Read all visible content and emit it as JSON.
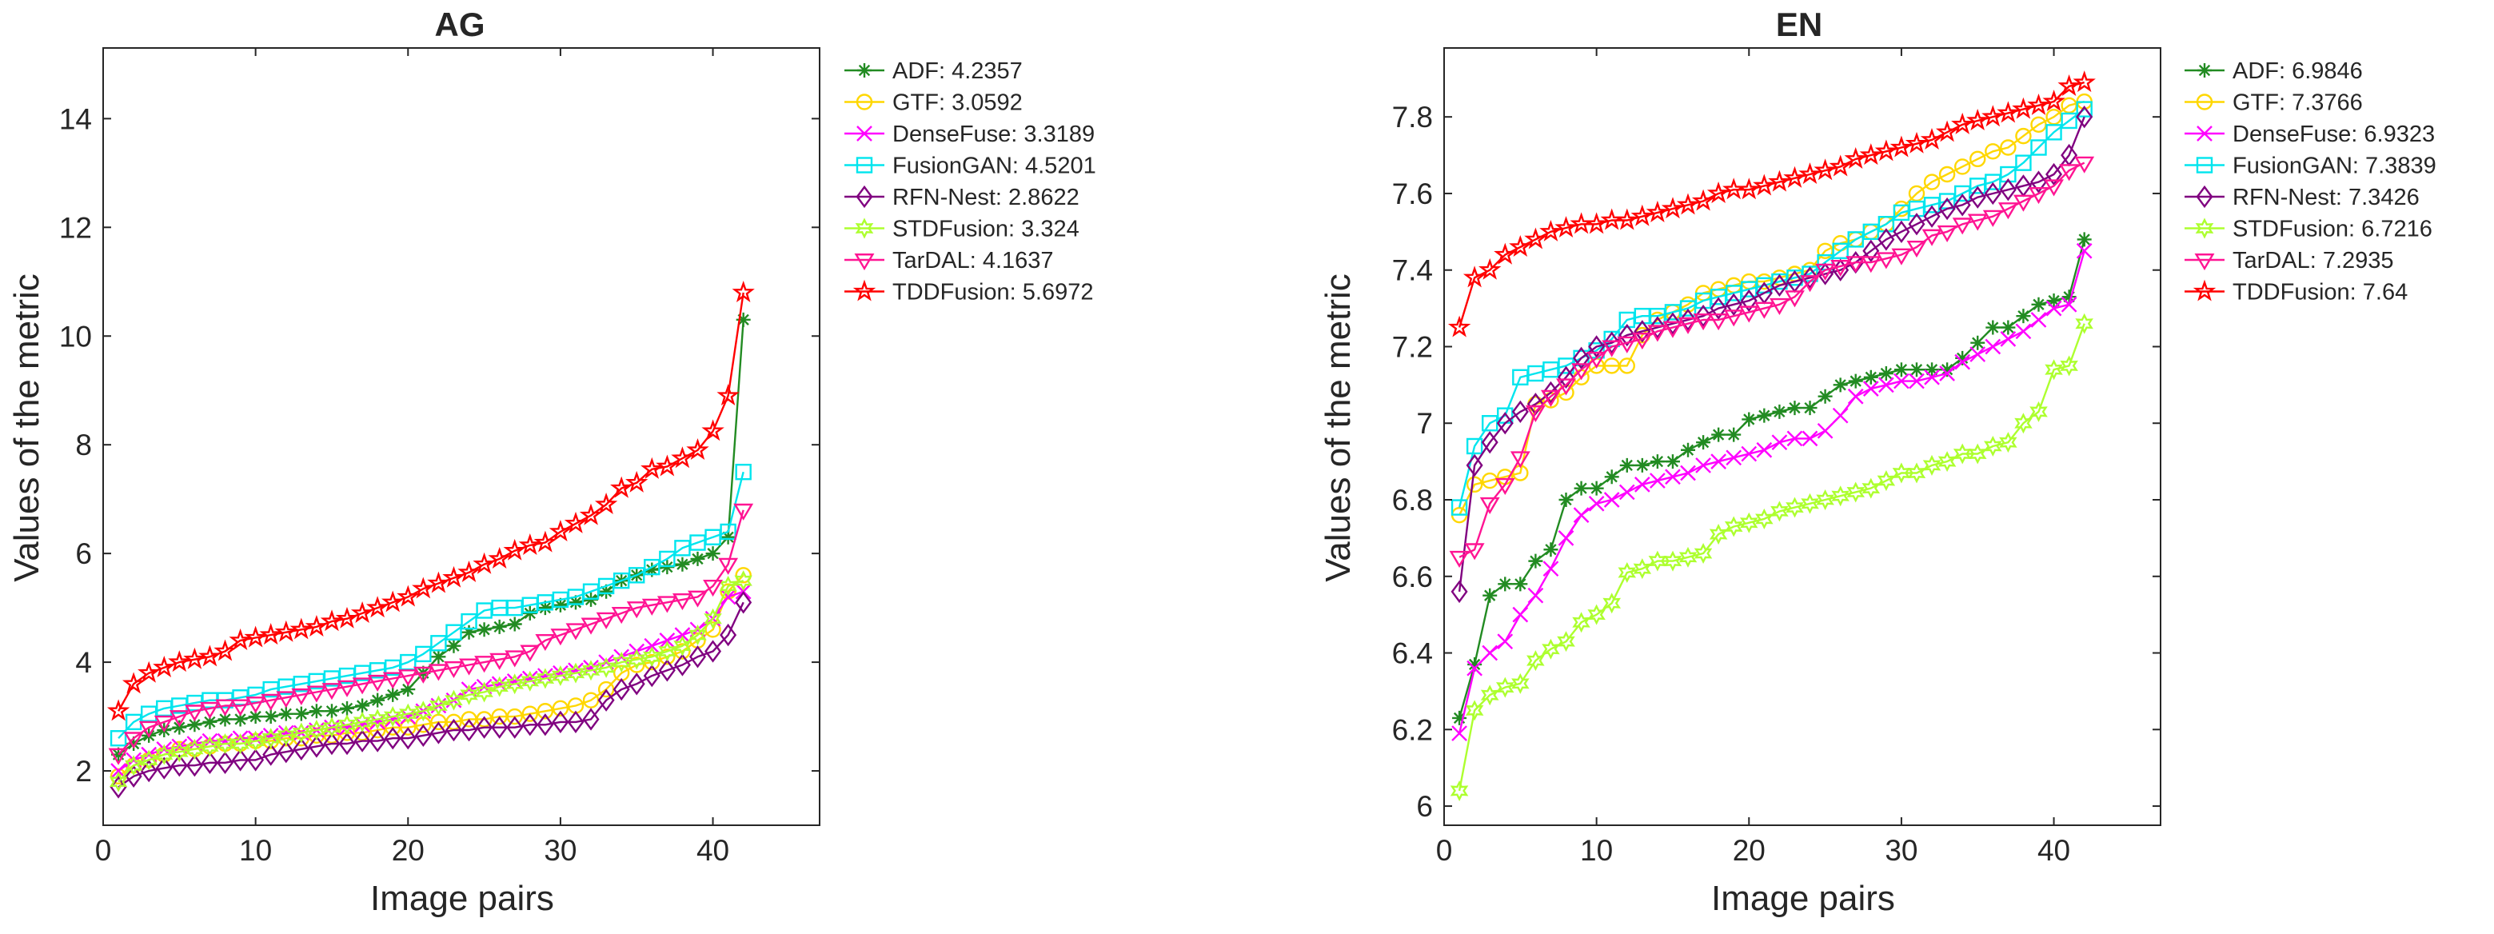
{
  "chart_data": [
    {
      "type": "line",
      "title": "AG",
      "xlabel": "Image pairs",
      "ylabel": "Values of the metric",
      "xlim": [
        0,
        47
      ],
      "ylim": [
        1,
        15.3
      ],
      "xticks": [
        0,
        10,
        20,
        30,
        40
      ],
      "yticks": [
        2,
        4,
        6,
        8,
        10,
        12,
        14
      ],
      "legend_position": "outside-right",
      "legend": [
        "ADF: 4.2357",
        "GTF: 3.0592",
        "DenseFuse: 3.3189",
        "FusionGAN: 4.5201",
        "RFN-Nest: 2.8622",
        "STDFusion: 3.324",
        "TarDAL: 4.1637",
        "TDDFusion: 5.6972"
      ],
      "x": [
        1,
        2,
        3,
        4,
        5,
        6,
        7,
        8,
        9,
        10,
        11,
        12,
        13,
        14,
        15,
        16,
        17,
        18,
        19,
        20,
        21,
        22,
        23,
        24,
        25,
        26,
        27,
        28,
        29,
        30,
        31,
        32,
        33,
        34,
        35,
        36,
        37,
        38,
        39,
        40,
        41,
        42
      ],
      "series": [
        {
          "name": "ADF",
          "color": "#228B22",
          "marker": "asterisk",
          "values": [
            2.3,
            2.5,
            2.65,
            2.75,
            2.8,
            2.85,
            2.9,
            2.95,
            2.95,
            3.0,
            3.0,
            3.05,
            3.05,
            3.1,
            3.1,
            3.15,
            3.2,
            3.3,
            3.4,
            3.5,
            3.8,
            4.1,
            4.3,
            4.55,
            4.6,
            4.65,
            4.7,
            4.9,
            5.0,
            5.05,
            5.1,
            5.15,
            5.3,
            5.5,
            5.6,
            5.7,
            5.75,
            5.8,
            5.9,
            6.0,
            6.3,
            10.3
          ]
        },
        {
          "name": "GTF",
          "color": "#FFD700",
          "marker": "circle",
          "values": [
            1.9,
            2.1,
            2.2,
            2.3,
            2.4,
            2.4,
            2.45,
            2.5,
            2.5,
            2.55,
            2.55,
            2.6,
            2.6,
            2.65,
            2.65,
            2.7,
            2.7,
            2.75,
            2.8,
            2.8,
            2.85,
            2.9,
            2.9,
            2.95,
            2.95,
            3.0,
            3.0,
            3.05,
            3.1,
            3.15,
            3.2,
            3.3,
            3.5,
            3.8,
            3.95,
            4.0,
            4.1,
            4.2,
            4.4,
            4.6,
            5.3,
            5.6
          ]
        },
        {
          "name": "DenseFuse",
          "color": "#FF00FF",
          "marker": "x",
          "values": [
            2.0,
            2.2,
            2.3,
            2.4,
            2.45,
            2.5,
            2.55,
            2.55,
            2.6,
            2.6,
            2.65,
            2.7,
            2.7,
            2.75,
            2.8,
            2.8,
            2.85,
            2.9,
            2.95,
            3.0,
            3.1,
            3.2,
            3.3,
            3.5,
            3.55,
            3.6,
            3.65,
            3.7,
            3.75,
            3.8,
            3.85,
            3.9,
            4.0,
            4.1,
            4.2,
            4.3,
            4.4,
            4.5,
            4.6,
            4.8,
            5.2,
            5.3
          ]
        },
        {
          "name": "FusionGAN",
          "color": "#00E5EE",
          "marker": "square",
          "values": [
            2.6,
            2.9,
            3.05,
            3.15,
            3.2,
            3.25,
            3.3,
            3.3,
            3.35,
            3.4,
            3.5,
            3.55,
            3.6,
            3.65,
            3.7,
            3.75,
            3.8,
            3.85,
            3.9,
            4.0,
            4.15,
            4.35,
            4.55,
            4.75,
            4.95,
            5.0,
            5.0,
            5.05,
            5.1,
            5.15,
            5.2,
            5.3,
            5.4,
            5.5,
            5.6,
            5.75,
            5.9,
            6.1,
            6.2,
            6.3,
            6.4,
            7.5
          ]
        },
        {
          "name": "RFN-Nest",
          "color": "#800080",
          "marker": "diamond",
          "values": [
            1.7,
            1.9,
            2.0,
            2.05,
            2.1,
            2.1,
            2.15,
            2.15,
            2.2,
            2.2,
            2.3,
            2.35,
            2.4,
            2.45,
            2.5,
            2.5,
            2.55,
            2.55,
            2.6,
            2.6,
            2.65,
            2.7,
            2.75,
            2.75,
            2.8,
            2.8,
            2.8,
            2.85,
            2.85,
            2.9,
            2.9,
            2.95,
            3.3,
            3.5,
            3.6,
            3.75,
            3.85,
            3.95,
            4.1,
            4.2,
            4.5,
            5.1
          ]
        },
        {
          "name": "STDFusion",
          "color": "#ADFF2F",
          "marker": "hexagram",
          "values": [
            1.8,
            2.1,
            2.2,
            2.3,
            2.35,
            2.4,
            2.45,
            2.5,
            2.5,
            2.55,
            2.6,
            2.65,
            2.7,
            2.75,
            2.8,
            2.85,
            2.9,
            2.95,
            3.0,
            3.05,
            3.1,
            3.2,
            3.3,
            3.4,
            3.45,
            3.55,
            3.6,
            3.65,
            3.7,
            3.75,
            3.8,
            3.85,
            3.9,
            4.0,
            4.05,
            4.1,
            4.2,
            4.3,
            4.5,
            4.8,
            5.4,
            5.5
          ]
        },
        {
          "name": "TarDAL",
          "color": "#FF1493",
          "marker": "triangle-down",
          "values": [
            2.3,
            2.6,
            2.8,
            2.9,
            3.0,
            3.1,
            3.15,
            3.2,
            3.2,
            3.25,
            3.3,
            3.35,
            3.4,
            3.45,
            3.5,
            3.55,
            3.6,
            3.65,
            3.7,
            3.75,
            3.8,
            3.85,
            3.9,
            3.95,
            4.0,
            4.05,
            4.1,
            4.2,
            4.4,
            4.5,
            4.6,
            4.7,
            4.8,
            4.9,
            5.0,
            5.05,
            5.1,
            5.15,
            5.2,
            5.4,
            5.8,
            6.8
          ]
        },
        {
          "name": "TDDFusion",
          "color": "#FF0000",
          "marker": "pentagram",
          "values": [
            3.1,
            3.6,
            3.8,
            3.9,
            4.0,
            4.05,
            4.1,
            4.2,
            4.4,
            4.45,
            4.5,
            4.55,
            4.6,
            4.65,
            4.75,
            4.8,
            4.9,
            5.0,
            5.1,
            5.2,
            5.35,
            5.45,
            5.55,
            5.65,
            5.8,
            5.9,
            6.05,
            6.15,
            6.2,
            6.4,
            6.55,
            6.7,
            6.9,
            7.2,
            7.3,
            7.55,
            7.6,
            7.75,
            7.9,
            8.25,
            8.9,
            10.8
          ]
        }
      ]
    },
    {
      "type": "line",
      "title": "EN",
      "xlabel": "Image pairs",
      "ylabel": "Values of the metric",
      "xlim": [
        0,
        47
      ],
      "ylim": [
        5.95,
        7.98
      ],
      "xticks": [
        0,
        10,
        20,
        30,
        40
      ],
      "yticks": [
        6,
        6.2,
        6.4,
        6.6,
        6.8,
        7,
        7.2,
        7.4,
        7.6,
        7.8
      ],
      "legend_position": "outside-right",
      "legend": [
        "ADF: 6.9846",
        "GTF: 7.3766",
        "DenseFuse: 6.9323",
        "FusionGAN: 7.3839",
        "RFN-Nest: 7.3426",
        "STDFusion: 6.7216",
        "TarDAL: 7.2935",
        "TDDFusion: 7.64"
      ],
      "x": [
        1,
        2,
        3,
        4,
        5,
        6,
        7,
        8,
        9,
        10,
        11,
        12,
        13,
        14,
        15,
        16,
        17,
        18,
        19,
        20,
        21,
        22,
        23,
        24,
        25,
        26,
        27,
        28,
        29,
        30,
        31,
        32,
        33,
        34,
        35,
        36,
        37,
        38,
        39,
        40,
        41,
        42
      ],
      "series": [
        {
          "name": "ADF",
          "color": "#228B22",
          "marker": "asterisk",
          "values": [
            6.23,
            6.37,
            6.55,
            6.58,
            6.58,
            6.64,
            6.67,
            6.8,
            6.83,
            6.83,
            6.86,
            6.89,
            6.89,
            6.9,
            6.9,
            6.93,
            6.95,
            6.97,
            6.97,
            7.01,
            7.02,
            7.03,
            7.04,
            7.04,
            7.07,
            7.1,
            7.11,
            7.12,
            7.13,
            7.14,
            7.14,
            7.14,
            7.14,
            7.17,
            7.21,
            7.25,
            7.25,
            7.28,
            7.31,
            7.32,
            7.33,
            7.48
          ]
        },
        {
          "name": "GTF",
          "color": "#FFD700",
          "marker": "circle",
          "values": [
            6.76,
            6.84,
            6.85,
            6.86,
            6.87,
            7.05,
            7.06,
            7.08,
            7.12,
            7.15,
            7.15,
            7.15,
            7.23,
            7.27,
            7.29,
            7.31,
            7.34,
            7.35,
            7.36,
            7.37,
            7.37,
            7.38,
            7.39,
            7.4,
            7.45,
            7.47,
            7.48,
            7.5,
            7.52,
            7.56,
            7.6,
            7.63,
            7.65,
            7.67,
            7.69,
            7.71,
            7.72,
            7.75,
            7.78,
            7.8,
            7.83,
            7.84
          ]
        },
        {
          "name": "DenseFuse",
          "color": "#FF00FF",
          "marker": "x",
          "values": [
            6.19,
            6.36,
            6.4,
            6.43,
            6.5,
            6.55,
            6.62,
            6.7,
            6.76,
            6.79,
            6.8,
            6.82,
            6.84,
            6.85,
            6.86,
            6.87,
            6.89,
            6.9,
            6.91,
            6.92,
            6.93,
            6.95,
            6.96,
            6.96,
            6.98,
            7.02,
            7.07,
            7.09,
            7.1,
            7.11,
            7.11,
            7.12,
            7.13,
            7.16,
            7.18,
            7.2,
            7.22,
            7.24,
            7.27,
            7.3,
            7.31,
            7.45
          ]
        },
        {
          "name": "FusionGAN",
          "color": "#00E5EE",
          "marker": "square",
          "values": [
            6.78,
            6.94,
            7.0,
            7.02,
            7.12,
            7.13,
            7.14,
            7.15,
            7.17,
            7.19,
            7.22,
            7.27,
            7.28,
            7.28,
            7.29,
            7.3,
            7.32,
            7.33,
            7.34,
            7.35,
            7.36,
            7.37,
            7.38,
            7.39,
            7.42,
            7.45,
            7.48,
            7.5,
            7.52,
            7.55,
            7.56,
            7.57,
            7.58,
            7.6,
            7.62,
            7.63,
            7.65,
            7.68,
            7.72,
            7.76,
            7.79,
            7.82
          ]
        },
        {
          "name": "RFN-Nest",
          "color": "#800080",
          "marker": "diamond",
          "values": [
            6.56,
            6.89,
            6.95,
            7.0,
            7.03,
            7.05,
            7.08,
            7.12,
            7.17,
            7.2,
            7.21,
            7.23,
            7.24,
            7.25,
            7.26,
            7.27,
            7.28,
            7.3,
            7.31,
            7.32,
            7.34,
            7.36,
            7.37,
            7.38,
            7.39,
            7.4,
            7.42,
            7.45,
            7.48,
            7.5,
            7.52,
            7.54,
            7.56,
            7.57,
            7.59,
            7.6,
            7.61,
            7.62,
            7.63,
            7.65,
            7.7,
            7.8
          ]
        },
        {
          "name": "STDFusion",
          "color": "#ADFF2F",
          "marker": "hexagram",
          "values": [
            6.04,
            6.25,
            6.29,
            6.31,
            6.32,
            6.38,
            6.41,
            6.43,
            6.48,
            6.5,
            6.53,
            6.61,
            6.62,
            6.64,
            6.64,
            6.65,
            6.66,
            6.71,
            6.73,
            6.74,
            6.75,
            6.77,
            6.78,
            6.79,
            6.8,
            6.81,
            6.82,
            6.83,
            6.85,
            6.87,
            6.87,
            6.89,
            6.9,
            6.92,
            6.92,
            6.94,
            6.95,
            7.0,
            7.03,
            7.14,
            7.15,
            7.26
          ]
        },
        {
          "name": "TarDAL",
          "color": "#FF1493",
          "marker": "triangle-down",
          "values": [
            6.65,
            6.67,
            6.79,
            6.84,
            6.91,
            7.03,
            7.07,
            7.1,
            7.14,
            7.17,
            7.2,
            7.21,
            7.22,
            7.24,
            7.25,
            7.26,
            7.27,
            7.27,
            7.28,
            7.29,
            7.3,
            7.31,
            7.33,
            7.37,
            7.4,
            7.41,
            7.42,
            7.42,
            7.43,
            7.44,
            7.46,
            7.49,
            7.5,
            7.52,
            7.53,
            7.54,
            7.56,
            7.58,
            7.6,
            7.62,
            7.66,
            7.68
          ]
        },
        {
          "name": "TDDFusion",
          "color": "#FF0000",
          "marker": "pentagram",
          "values": [
            7.25,
            7.38,
            7.4,
            7.44,
            7.46,
            7.48,
            7.5,
            7.51,
            7.52,
            7.52,
            7.53,
            7.53,
            7.54,
            7.55,
            7.56,
            7.57,
            7.58,
            7.6,
            7.61,
            7.61,
            7.62,
            7.63,
            7.64,
            7.65,
            7.66,
            7.67,
            7.69,
            7.7,
            7.71,
            7.72,
            7.73,
            7.74,
            7.76,
            7.78,
            7.79,
            7.8,
            7.81,
            7.82,
            7.83,
            7.84,
            7.88,
            7.89
          ]
        }
      ]
    }
  ]
}
